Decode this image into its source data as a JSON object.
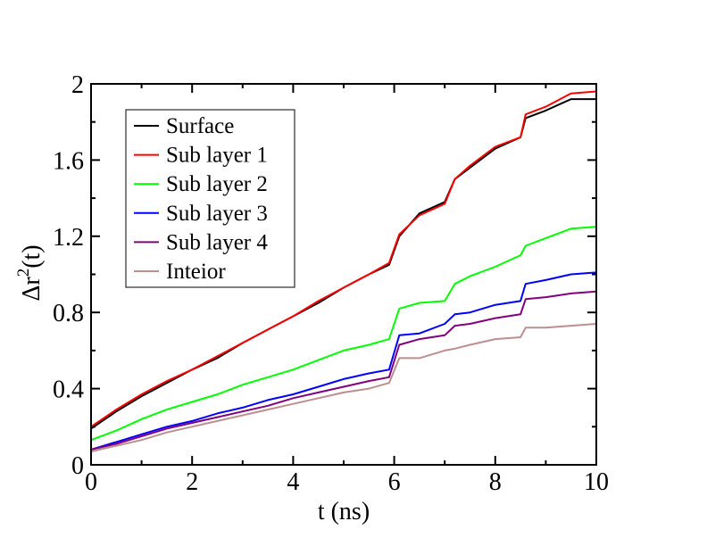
{
  "chart_data": {
    "type": "line",
    "xlabel": "t (ns)",
    "ylabel_base": "Δr",
    "ylabel_sup": "2",
    "ylabel_tail": "(t)",
    "xlim": [
      0,
      10
    ],
    "ylim": [
      0,
      2
    ],
    "xticks": [
      "0",
      "2",
      "4",
      "6",
      "8",
      "10"
    ],
    "yticks": [
      "0",
      "0.4",
      "0.8",
      "1.2",
      "1.6",
      "2"
    ],
    "grid": false,
    "legend_position": "top-left",
    "x": [
      0,
      0.5,
      1,
      1.5,
      2,
      2.5,
      3,
      3.5,
      4,
      4.5,
      5,
      5.5,
      5.9,
      6.1,
      6.5,
      7,
      7.2,
      7.5,
      8,
      8.5,
      8.6,
      9,
      9.5,
      10
    ],
    "series": [
      {
        "name": "Surface",
        "color": "#000000",
        "values": [
          0.19,
          0.28,
          0.36,
          0.43,
          0.5,
          0.56,
          0.64,
          0.71,
          0.78,
          0.85,
          0.93,
          1.0,
          1.05,
          1.2,
          1.32,
          1.38,
          1.5,
          1.56,
          1.66,
          1.72,
          1.82,
          1.86,
          1.92,
          1.92
        ]
      },
      {
        "name": "Sub layer 1",
        "color": "#ff0000",
        "values": [
          0.2,
          0.29,
          0.37,
          0.44,
          0.5,
          0.57,
          0.64,
          0.71,
          0.78,
          0.86,
          0.93,
          1.0,
          1.06,
          1.21,
          1.31,
          1.37,
          1.5,
          1.57,
          1.67,
          1.72,
          1.84,
          1.88,
          1.95,
          1.96
        ]
      },
      {
        "name": "Sub layer 2",
        "color": "#00ff00",
        "values": [
          0.13,
          0.18,
          0.24,
          0.29,
          0.33,
          0.37,
          0.42,
          0.46,
          0.5,
          0.55,
          0.6,
          0.63,
          0.66,
          0.82,
          0.85,
          0.86,
          0.95,
          0.99,
          1.04,
          1.1,
          1.15,
          1.19,
          1.24,
          1.25
        ]
      },
      {
        "name": "Sub layer 3",
        "color": "#0000ff",
        "values": [
          0.08,
          0.12,
          0.16,
          0.2,
          0.23,
          0.27,
          0.3,
          0.34,
          0.37,
          0.41,
          0.45,
          0.48,
          0.5,
          0.68,
          0.69,
          0.74,
          0.79,
          0.8,
          0.84,
          0.86,
          0.95,
          0.97,
          1.0,
          1.01
        ]
      },
      {
        "name": "Sub layer 4",
        "color": "#800080",
        "values": [
          0.08,
          0.11,
          0.15,
          0.19,
          0.22,
          0.25,
          0.28,
          0.31,
          0.35,
          0.38,
          0.41,
          0.44,
          0.46,
          0.63,
          0.66,
          0.68,
          0.73,
          0.74,
          0.77,
          0.79,
          0.87,
          0.88,
          0.9,
          0.91
        ]
      },
      {
        "name": "Inteior",
        "color": "#bc8f8f",
        "values": [
          0.07,
          0.1,
          0.13,
          0.17,
          0.2,
          0.23,
          0.26,
          0.29,
          0.32,
          0.35,
          0.38,
          0.4,
          0.43,
          0.56,
          0.56,
          0.6,
          0.61,
          0.63,
          0.66,
          0.67,
          0.72,
          0.72,
          0.73,
          0.74
        ]
      }
    ]
  }
}
